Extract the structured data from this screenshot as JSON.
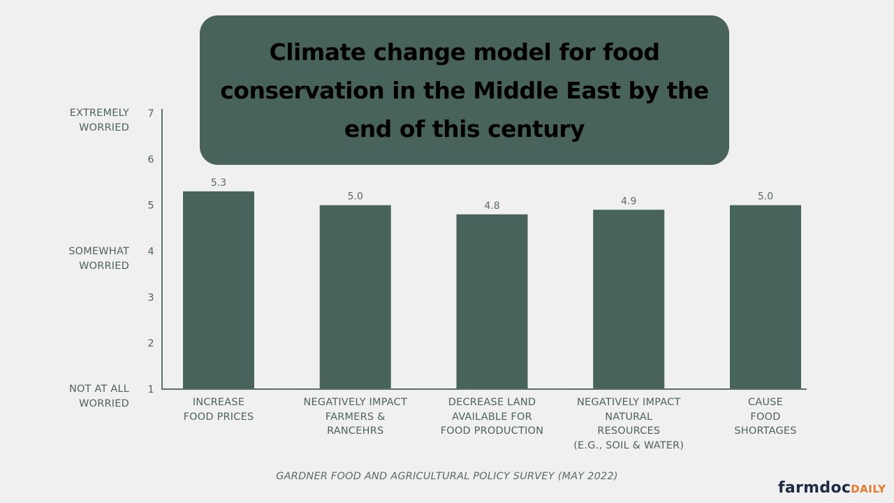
{
  "chart_data": {
    "type": "bar",
    "title": "Climate change model for food conservation in the Middle East by the end of this century",
    "categories": [
      "INCREASE\nFOOD PRICES",
      "NEGATIVELY IMPACT\nFARMERS &\nRANCEHRS",
      "DECREASE LAND\nAVAILABLE FOR\nFOOD PRODUCTION",
      "NEGATIVELY IMPACT\nNATURAL\nRESOURCES\n(E.G., SOIL & WATER)",
      "CAUSE\nFOOD\nSHORTAGES"
    ],
    "values": [
      5.3,
      5.0,
      4.8,
      4.9,
      5.0
    ],
    "data_labels": [
      "5.3",
      "5.0",
      "4.8",
      "4.9",
      "5.0"
    ],
    "ylim": [
      1,
      7
    ],
    "yticks": [
      1,
      2,
      3,
      4,
      5,
      6,
      7
    ],
    "ytick_labels": [
      "1",
      "2",
      "3",
      "4",
      "5",
      "6",
      "7"
    ],
    "y_category_labels": [
      {
        "value": 7,
        "label": "EXTREMELY\nWORRIED"
      },
      {
        "value": 4,
        "label": "SOMEWHAT\nWORRIED"
      },
      {
        "value": 1,
        "label": "NOT AT ALL\nWORRIED"
      }
    ],
    "xlabel": "",
    "ylabel": "",
    "grid": false,
    "bar_color": "#47635c",
    "source": "GARDNER FOOD AND AGRICULTURAL POLICY SURVEY (MAY 2022)"
  },
  "header": {
    "title": "Climate change model for food conservation in the Middle East by the end of this century"
  },
  "footer": {
    "source": "GARDNER FOOD AND AGRICULTURAL POLICY SURVEY (MAY 2022)",
    "logo_primary": "farmdoc",
    "logo_secondary": "DAILY"
  },
  "colors": {
    "bar": "#47635c",
    "title_box": "#47635c",
    "axis": "#5a6f69",
    "text": "#4e625d",
    "logo_dark": "#1f2a44",
    "logo_accent": "#e8782a"
  }
}
